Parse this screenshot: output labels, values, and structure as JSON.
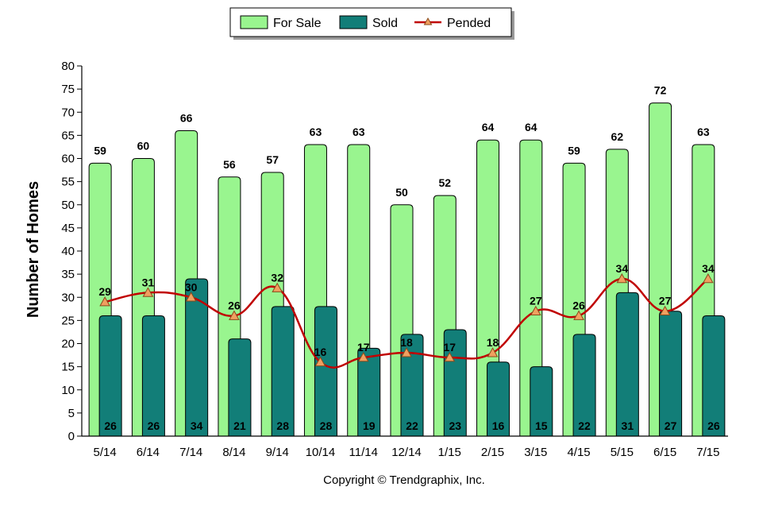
{
  "chart_data": {
    "type": "bar",
    "categories": [
      "5/14",
      "6/14",
      "7/14",
      "8/14",
      "9/14",
      "10/14",
      "11/14",
      "12/14",
      "1/15",
      "2/15",
      "3/15",
      "4/15",
      "5/15",
      "6/15",
      "7/15"
    ],
    "series": [
      {
        "name": "For Sale",
        "type": "bar",
        "color": "#99f58f",
        "values": [
          59,
          60,
          66,
          56,
          57,
          63,
          63,
          50,
          52,
          64,
          64,
          59,
          62,
          72,
          63
        ]
      },
      {
        "name": "Sold",
        "type": "bar",
        "color": "#127e78",
        "values": [
          26,
          26,
          34,
          21,
          28,
          28,
          19,
          22,
          23,
          16,
          15,
          22,
          31,
          27,
          26
        ]
      },
      {
        "name": "Pended",
        "type": "line",
        "color": "#c00000",
        "marker_color": "#f0a060",
        "values": [
          29,
          31,
          30,
          26,
          32,
          16,
          17,
          18,
          17,
          18,
          27,
          26,
          34,
          27,
          34
        ]
      }
    ],
    "xlabel": "",
    "ylabel": "Number of Homes",
    "ylim": [
      0,
      80
    ],
    "ytick_step": 5,
    "legend_position": "top-center"
  },
  "footer": {
    "copyright": "Copyright © Trendgraphix, Inc."
  }
}
